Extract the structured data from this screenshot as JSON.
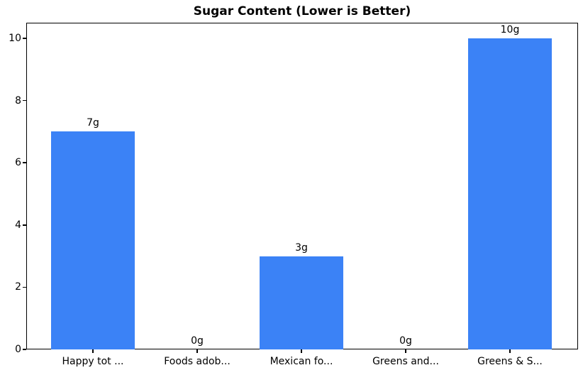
{
  "chart_data": {
    "type": "bar",
    "title": "Sugar Content (Lower is Better)",
    "categories": [
      "Happy tot ...",
      "Foods adob...",
      "Mexican fo...",
      "Greens and...",
      "Greens & S..."
    ],
    "values": [
      7,
      0,
      3,
      0,
      10
    ],
    "value_labels": [
      "7g",
      "0g",
      "3g",
      "0g",
      "10g"
    ],
    "xlabel": "",
    "ylabel": "",
    "yticks": [
      0,
      2,
      4,
      6,
      8,
      10
    ],
    "ylim": [
      0,
      10.5
    ],
    "grid": false,
    "legend": null,
    "bar_color": "#3b82f6",
    "text_color": "#000000",
    "background_color": "#ffffff"
  }
}
